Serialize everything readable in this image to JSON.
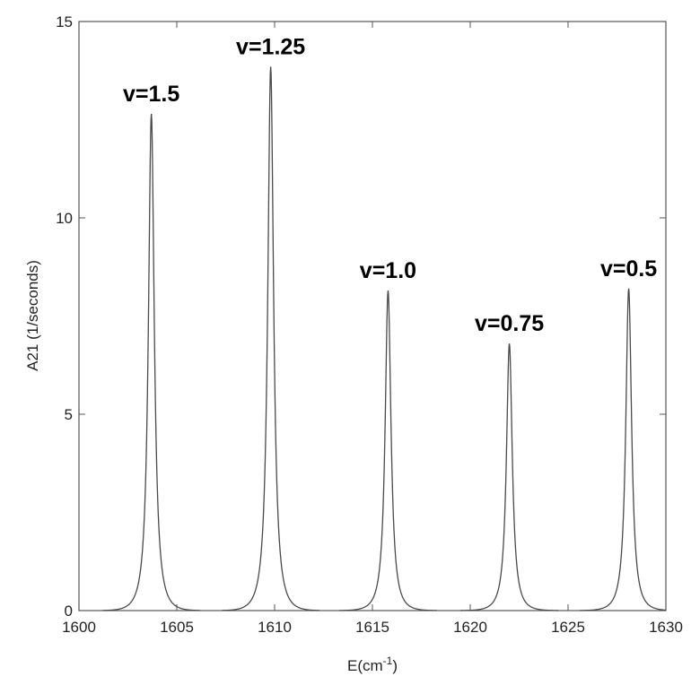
{
  "chart_data": {
    "type": "line",
    "title": "",
    "xlabel": "E(cm",
    "xlabel_sup": "-1",
    "xlabel_suffix": ")",
    "ylabel": "A21 (1/seconds)",
    "xlim": [
      1600,
      1630
    ],
    "ylim": [
      0,
      15
    ],
    "x_ticks": [
      1600,
      1605,
      1610,
      1615,
      1620,
      1625,
      1630
    ],
    "y_ticks": [
      0,
      5,
      10,
      15
    ],
    "grid": false,
    "line_color": "#4a4a4a",
    "peaks": [
      {
        "label": "v=1.5",
        "center": 1603.7,
        "height": 12.65
      },
      {
        "label": "v=1.25",
        "center": 1609.8,
        "height": 13.85
      },
      {
        "label": "v=1.0",
        "center": 1615.8,
        "height": 8.15
      },
      {
        "label": "v=0.75",
        "center": 1622.0,
        "height": 6.8
      },
      {
        "label": "v=0.5",
        "center": 1628.1,
        "height": 8.2
      }
    ]
  }
}
